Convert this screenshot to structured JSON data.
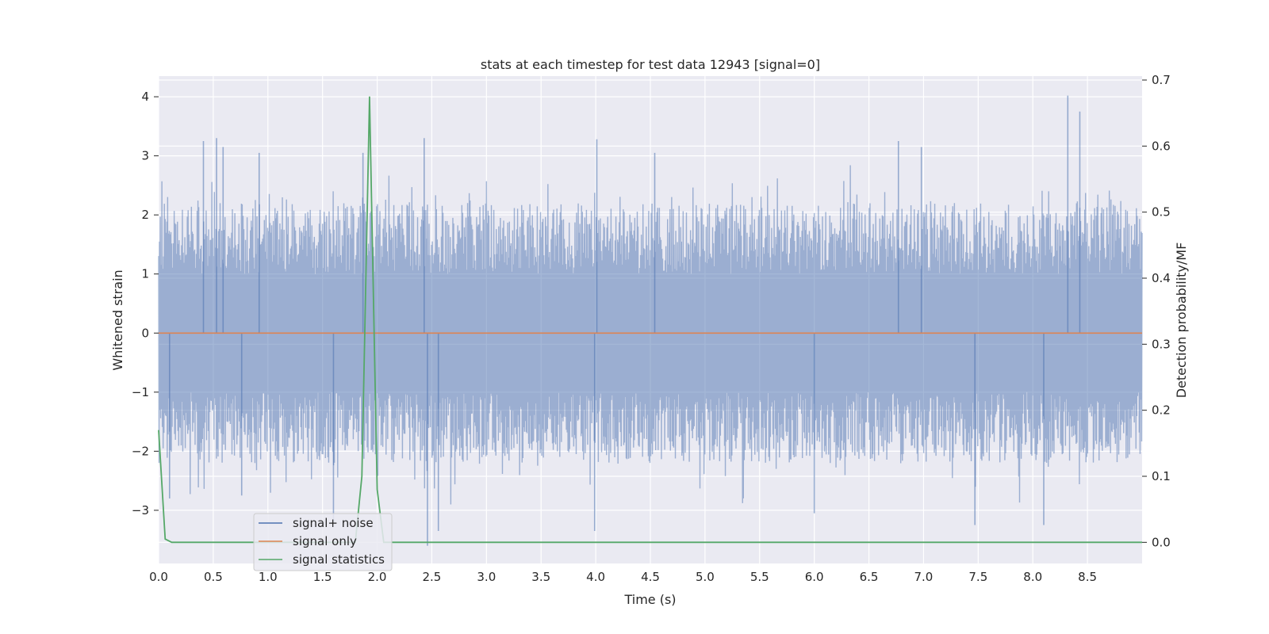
{
  "chart_data": {
    "type": "line",
    "title": "stats at each timestep for test data 12943 [signal=0]",
    "xlabel": "Time (s)",
    "ylabel": "Whitened strain",
    "y2label": "Detection probability/MF",
    "xlim": [
      0.0,
      9.0
    ],
    "ylim": [
      -3.9,
      4.35
    ],
    "y2lim": [
      -0.032,
      0.706
    ],
    "xticks": [
      "0.0",
      "0.5",
      "1.0",
      "1.5",
      "2.0",
      "2.5",
      "3.0",
      "3.5",
      "4.0",
      "4.5",
      "5.0",
      "5.5",
      "6.0",
      "6.5",
      "7.0",
      "7.5",
      "8.0",
      "8.5"
    ],
    "yticks": [
      "4",
      "3",
      "2",
      "1",
      "0",
      "−1",
      "−2",
      "−3"
    ],
    "y2ticks": [
      "0.7",
      "0.6",
      "0.5",
      "0.4",
      "0.3",
      "0.2",
      "0.1",
      "0.0"
    ],
    "grid": true,
    "legend_position": "lower-left",
    "series": [
      {
        "name": "signal+ noise",
        "color": "#4c72b0",
        "axis": "left",
        "kind": "noise",
        "typical_abs_range": [
          1.0,
          2.2
        ],
        "peaks": [
          {
            "x": 0.41,
            "y": 3.25
          },
          {
            "x": 0.53,
            "y": 3.3
          },
          {
            "x": 0.59,
            "y": 3.15
          },
          {
            "x": 0.92,
            "y": 3.05
          },
          {
            "x": 1.87,
            "y": 3.05
          },
          {
            "x": 2.43,
            "y": 3.3
          },
          {
            "x": 4.01,
            "y": 3.28
          },
          {
            "x": 4.54,
            "y": 3.05
          },
          {
            "x": 6.77,
            "y": 3.25
          },
          {
            "x": 6.98,
            "y": 3.15
          },
          {
            "x": 8.32,
            "y": 4.02
          },
          {
            "x": 8.43,
            "y": 3.75
          },
          {
            "x": 1.6,
            "y": -3.2
          },
          {
            "x": 2.46,
            "y": -3.6
          },
          {
            "x": 2.56,
            "y": -3.35
          },
          {
            "x": 3.99,
            "y": -3.35
          },
          {
            "x": 6.0,
            "y": -3.05
          },
          {
            "x": 7.47,
            "y": -3.25
          },
          {
            "x": 8.1,
            "y": -3.25
          },
          {
            "x": 0.1,
            "y": -2.8
          },
          {
            "x": 0.76,
            "y": -2.75
          }
        ]
      },
      {
        "name": "signal only",
        "color": "#dd8452",
        "axis": "left",
        "x": [
          0.0,
          9.0
        ],
        "y": [
          0.0,
          0.0
        ]
      },
      {
        "name": "signal statistics",
        "color": "#55a868",
        "axis": "right",
        "x": [
          0.0,
          0.06,
          0.12,
          0.18,
          1.8,
          1.86,
          1.93,
          2.0,
          2.06,
          2.12,
          9.0
        ],
        "y": [
          0.17,
          0.005,
          0.0,
          0.0,
          0.0,
          0.1,
          0.675,
          0.08,
          0.0,
          0.0,
          0.0
        ]
      }
    ]
  }
}
